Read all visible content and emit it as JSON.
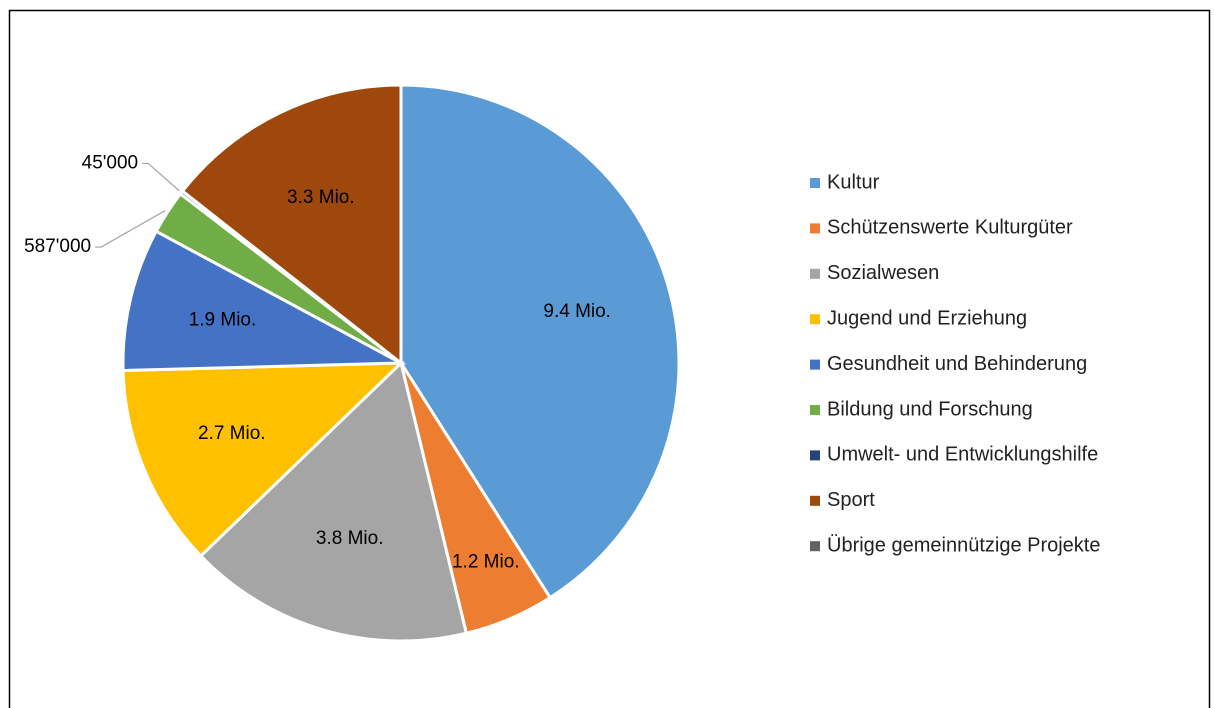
{
  "chart_data": {
    "type": "pie",
    "categories": [
      "Kultur",
      "Schützenswerte Kulturgüter",
      "Sozialwesen",
      "Jugend und Erziehung",
      "Gesundheit und Behinderung",
      "Bildung und Forschung",
      "Umwelt- und Entwicklungshilfe",
      "Sport",
      "Übrige gemeinnützige Projekte"
    ],
    "values": [
      9400000,
      1200000,
      3800000,
      2700000,
      1900000,
      587000,
      45000,
      3300000,
      0
    ],
    "value_labels": [
      "9.4 Mio.",
      "1.2 Mio.",
      "3.8 Mio.",
      "2.7 Mio.",
      "1.9 Mio.",
      "587'000",
      "45'000",
      "3.3 Mio.",
      null
    ],
    "colors": [
      "#5b9bd5",
      "#ed7d31",
      "#a5a5a5",
      "#ffc000",
      "#4472c4",
      "#70ad47",
      "#264478",
      "#9e480e",
      "#636363"
    ],
    "legend": "right"
  }
}
